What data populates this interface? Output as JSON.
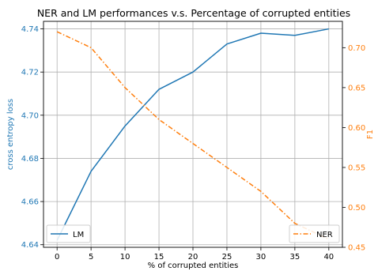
{
  "chart_data": {
    "type": "line",
    "title": "NER and LM performances v.s. Percentage of corrupted entities",
    "xlabel": "% of corrupted entities",
    "x": [
      0,
      5,
      10,
      15,
      20,
      25,
      30,
      35,
      40
    ],
    "xlim": [
      -2,
      42
    ],
    "xticks": [
      "0",
      "5",
      "10",
      "15",
      "20",
      "25",
      "30",
      "35",
      "40"
    ],
    "grid": true,
    "y_left": {
      "label": "cross entropy loss",
      "lim": [
        4.6388,
        4.7435
      ],
      "ticks": [
        4.64,
        4.66,
        4.68,
        4.7,
        4.72,
        4.74
      ],
      "tick_labels": [
        "4.64",
        "4.66",
        "4.68",
        "4.70",
        "4.72",
        "4.74"
      ],
      "color": "#1f77b4"
    },
    "y_right": {
      "label": "F1",
      "lim": [
        0.45,
        0.733
      ],
      "ticks": [
        0.45,
        0.5,
        0.55,
        0.6,
        0.65,
        0.7
      ],
      "tick_labels": [
        "0.45",
        "0.50",
        "0.55",
        "0.60",
        "0.65",
        "0.70"
      ],
      "color": "#ff7f0e"
    },
    "series": [
      {
        "name": "LM",
        "axis": "left",
        "color": "#1f77b4",
        "style": "solid",
        "values": [
          4.642,
          4.674,
          4.695,
          4.712,
          4.72,
          4.733,
          4.738,
          4.737,
          4.74
        ],
        "legend_position": "lower-left"
      },
      {
        "name": "NER",
        "axis": "right",
        "color": "#ff7f0e",
        "style": "dashdot",
        "values": [
          0.72,
          0.7,
          0.65,
          0.61,
          0.58,
          0.55,
          0.52,
          0.48,
          0.46
        ],
        "legend_position": "lower-right"
      }
    ]
  }
}
